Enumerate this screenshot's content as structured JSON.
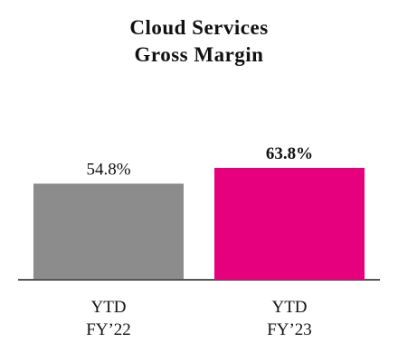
{
  "chart_data": {
    "type": "bar",
    "title_lines": [
      "Cloud Services",
      "Gross Margin"
    ],
    "categories": [
      [
        "YTD",
        "FY’22"
      ],
      [
        "YTD",
        "FY’23"
      ]
    ],
    "values": [
      54.8,
      63.8
    ],
    "data_labels": [
      "54.8%",
      "63.8%"
    ],
    "bold_labels": [
      false,
      true
    ],
    "colors": [
      "#8c8c8c",
      "#e6007e"
    ],
    "axis_color": "#555555",
    "ylim": [
      0,
      65
    ],
    "grid": false,
    "legend": "none"
  }
}
